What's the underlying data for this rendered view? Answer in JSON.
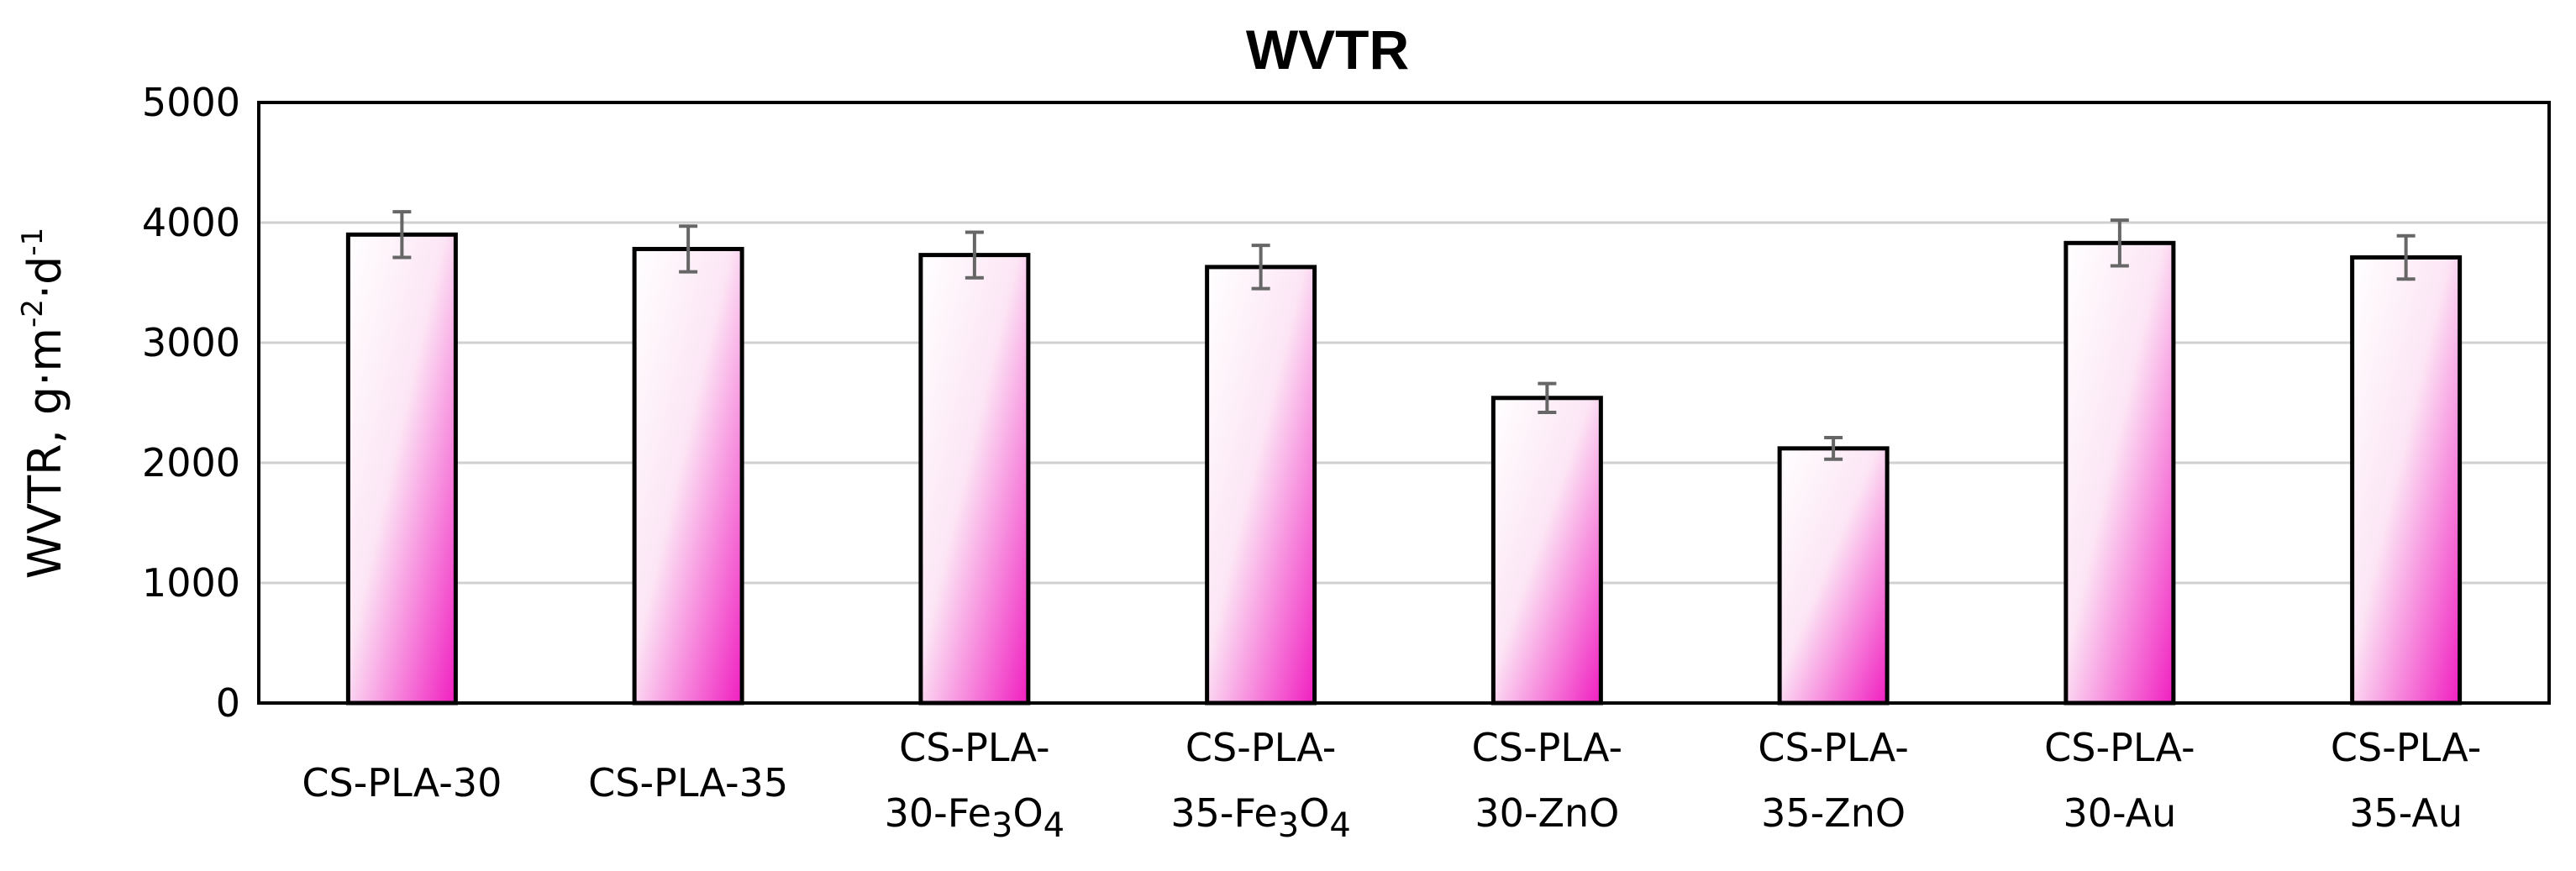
{
  "chart_data": {
    "type": "bar",
    "title": "WVTR",
    "ylabel": {
      "base": "WVTR, g·m",
      "exp1": "-2",
      "mid": "·d",
      "exp2": "-1"
    },
    "xlabel": "",
    "ylim": [
      0,
      5000
    ],
    "yticks": [
      0,
      1000,
      2000,
      3000,
      4000,
      5000
    ],
    "grid": true,
    "categories": [
      {
        "lines": [
          {
            "t": "CS-PLA-30"
          }
        ]
      },
      {
        "lines": [
          {
            "t": "CS-PLA-35"
          }
        ]
      },
      {
        "lines": [
          {
            "t": "CS-PLA-"
          },
          {
            "t": "30-Fe",
            "s1": "3",
            "m": "O",
            "s2": "4"
          }
        ]
      },
      {
        "lines": [
          {
            "t": "CS-PLA-"
          },
          {
            "t": "35-Fe",
            "s1": "3",
            "m": "O",
            "s2": "4"
          }
        ]
      },
      {
        "lines": [
          {
            "t": "CS-PLA-"
          },
          {
            "t": "30-ZnO"
          }
        ]
      },
      {
        "lines": [
          {
            "t": "CS-PLA-"
          },
          {
            "t": "35-ZnO"
          }
        ]
      },
      {
        "lines": [
          {
            "t": "CS-PLA-"
          },
          {
            "t": "30-Au"
          }
        ]
      },
      {
        "lines": [
          {
            "t": "CS-PLA-"
          },
          {
            "t": "35-Au"
          }
        ]
      }
    ],
    "values": [
      3900,
      3780,
      3730,
      3630,
      2540,
      2120,
      3830,
      3710
    ],
    "errors": [
      190,
      190,
      190,
      180,
      120,
      90,
      190,
      180
    ],
    "colors": {
      "bar_light": "#ffffff",
      "bar_dark": "#f01ec0",
      "grid": "#d0d0d0",
      "error": "#666666",
      "frame": "#000000"
    }
  }
}
